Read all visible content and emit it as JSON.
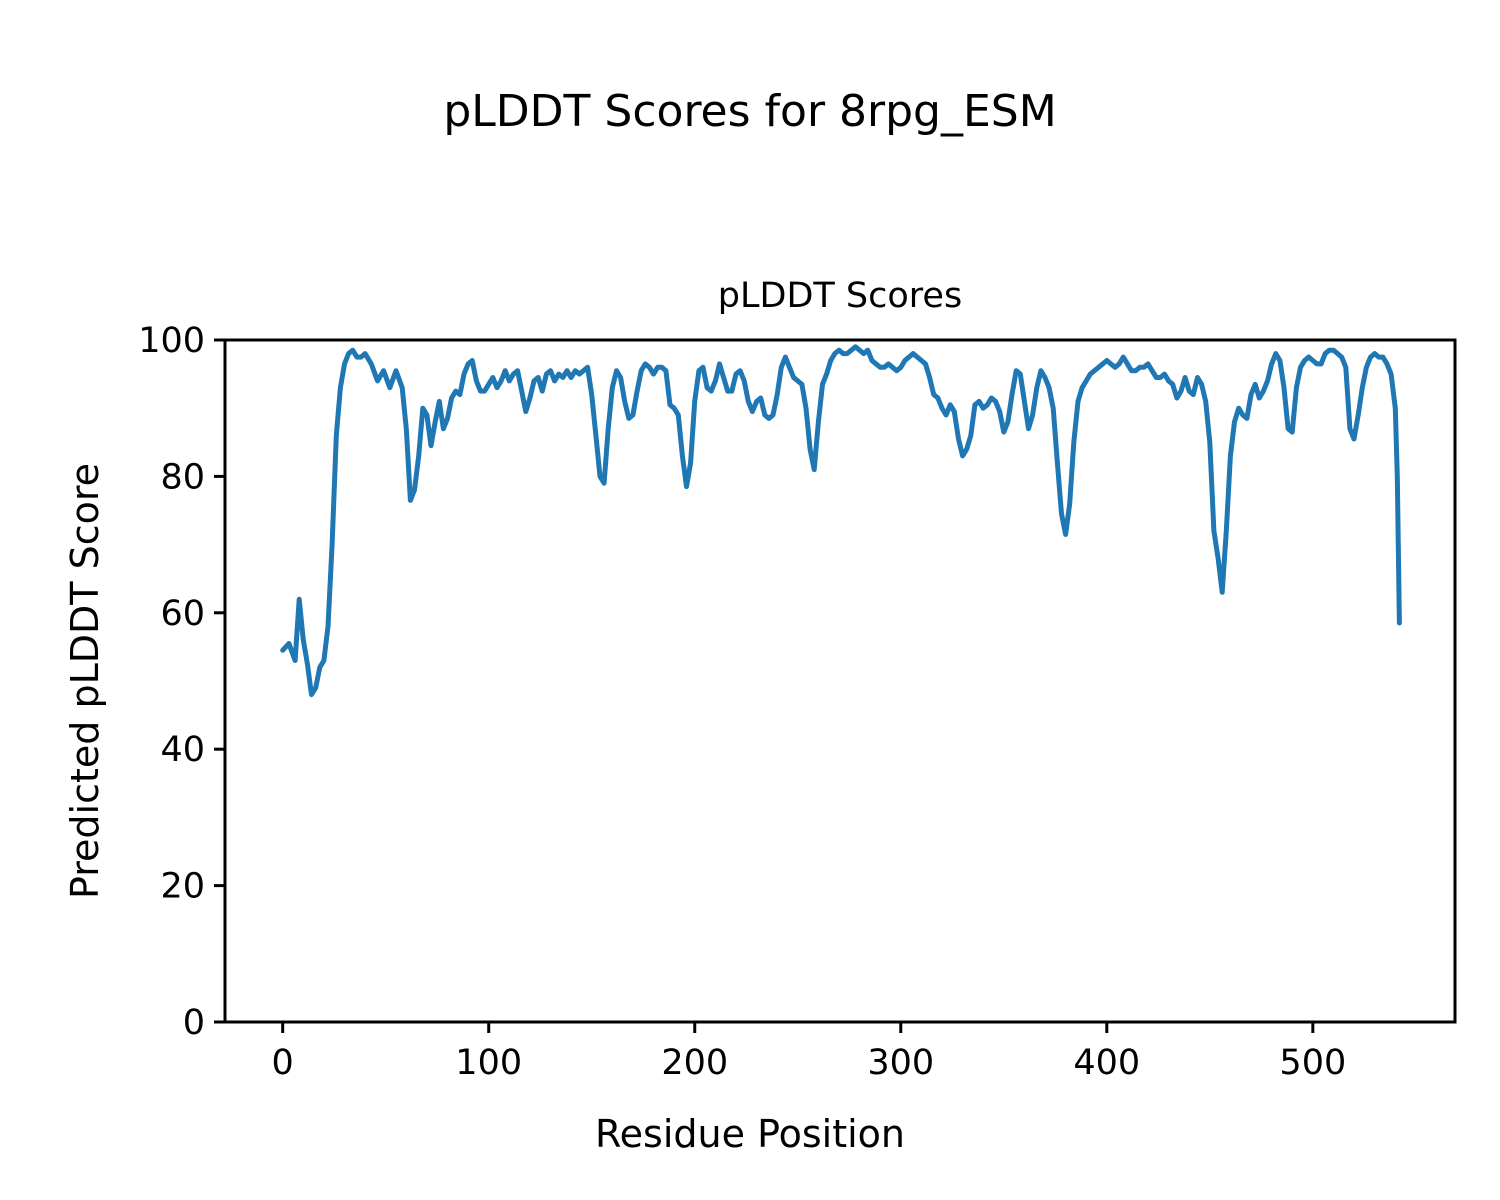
{
  "figure": {
    "background": "#ffffff"
  },
  "chart_data": {
    "type": "line",
    "suptitle": "pLDDT Scores for 8rpg_ESM",
    "title": "pLDDT Scores",
    "xlabel": "Residue Position",
    "ylabel": "Predicted pLDDT Score",
    "xlim": [
      -28,
      569
    ],
    "ylim": [
      0,
      100
    ],
    "xticks": [
      0,
      100,
      200,
      300,
      400,
      500
    ],
    "yticks": [
      0,
      20,
      40,
      60,
      80,
      100
    ],
    "grid": false,
    "legend": "none",
    "line_color": "#1f77b4",
    "series_name": "pLDDT",
    "points": [
      [
        0,
        54.5
      ],
      [
        3,
        55.5
      ],
      [
        6,
        53
      ],
      [
        8,
        62
      ],
      [
        10,
        56
      ],
      [
        12,
        52.5
      ],
      [
        14,
        48
      ],
      [
        16,
        49
      ],
      [
        18,
        52
      ],
      [
        20,
        53
      ],
      [
        22,
        58
      ],
      [
        24,
        70
      ],
      [
        26,
        86
      ],
      [
        28,
        93
      ],
      [
        30,
        96.5
      ],
      [
        32,
        98
      ],
      [
        34,
        98.5
      ],
      [
        36,
        97.5
      ],
      [
        38,
        97.5
      ],
      [
        40,
        98
      ],
      [
        43,
        96.5
      ],
      [
        46,
        94
      ],
      [
        49,
        95.5
      ],
      [
        52,
        93
      ],
      [
        55,
        95.5
      ],
      [
        58,
        93
      ],
      [
        60,
        87
      ],
      [
        62,
        76.5
      ],
      [
        64,
        78
      ],
      [
        66,
        83
      ],
      [
        68,
        90
      ],
      [
        70,
        89
      ],
      [
        72,
        84.5
      ],
      [
        74,
        88
      ],
      [
        76,
        91
      ],
      [
        78,
        87
      ],
      [
        80,
        88.5
      ],
      [
        82,
        91.5
      ],
      [
        84,
        92.5
      ],
      [
        86,
        92
      ],
      [
        88,
        95
      ],
      [
        90,
        96.5
      ],
      [
        92,
        97
      ],
      [
        94,
        94
      ],
      [
        96,
        92.5
      ],
      [
        98,
        92.5
      ],
      [
        100,
        93.5
      ],
      [
        102,
        94.5
      ],
      [
        104,
        93
      ],
      [
        106,
        94
      ],
      [
        108,
        95.5
      ],
      [
        110,
        94
      ],
      [
        112,
        95
      ],
      [
        114,
        95.5
      ],
      [
        116,
        92.5
      ],
      [
        118,
        89.5
      ],
      [
        120,
        91.5
      ],
      [
        122,
        94
      ],
      [
        124,
        94.5
      ],
      [
        126,
        92.5
      ],
      [
        128,
        95
      ],
      [
        130,
        95.5
      ],
      [
        132,
        94
      ],
      [
        134,
        95
      ],
      [
        136,
        94.5
      ],
      [
        138,
        95.5
      ],
      [
        140,
        94.5
      ],
      [
        142,
        95.5
      ],
      [
        144,
        95
      ],
      [
        146,
        95.5
      ],
      [
        148,
        96
      ],
      [
        150,
        92
      ],
      [
        152,
        86
      ],
      [
        154,
        80
      ],
      [
        156,
        79
      ],
      [
        158,
        87
      ],
      [
        160,
        93
      ],
      [
        162,
        95.5
      ],
      [
        164,
        94.5
      ],
      [
        166,
        91
      ],
      [
        168,
        88.5
      ],
      [
        170,
        89
      ],
      [
        172,
        92.5
      ],
      [
        174,
        95.5
      ],
      [
        176,
        96.5
      ],
      [
        178,
        96
      ],
      [
        180,
        95
      ],
      [
        182,
        96
      ],
      [
        184,
        96
      ],
      [
        186,
        95.5
      ],
      [
        188,
        90.5
      ],
      [
        190,
        90
      ],
      [
        192,
        89
      ],
      [
        194,
        83
      ],
      [
        196,
        78.5
      ],
      [
        198,
        82
      ],
      [
        200,
        91
      ],
      [
        202,
        95.5
      ],
      [
        204,
        96
      ],
      [
        206,
        93
      ],
      [
        208,
        92.5
      ],
      [
        210,
        94
      ],
      [
        212,
        96.5
      ],
      [
        214,
        94.5
      ],
      [
        216,
        92.5
      ],
      [
        218,
        92.5
      ],
      [
        220,
        95
      ],
      [
        222,
        95.5
      ],
      [
        224,
        94
      ],
      [
        226,
        91
      ],
      [
        228,
        89.5
      ],
      [
        230,
        91
      ],
      [
        232,
        91.5
      ],
      [
        234,
        89
      ],
      [
        236,
        88.5
      ],
      [
        238,
        89
      ],
      [
        240,
        92
      ],
      [
        242,
        96
      ],
      [
        244,
        97.5
      ],
      [
        246,
        96
      ],
      [
        248,
        94.5
      ],
      [
        250,
        94
      ],
      [
        252,
        93.5
      ],
      [
        254,
        90
      ],
      [
        256,
        84
      ],
      [
        258,
        81
      ],
      [
        260,
        88
      ],
      [
        262,
        93.5
      ],
      [
        264,
        95
      ],
      [
        266,
        97
      ],
      [
        268,
        98
      ],
      [
        270,
        98.5
      ],
      [
        272,
        98
      ],
      [
        274,
        98
      ],
      [
        276,
        98.5
      ],
      [
        278,
        99
      ],
      [
        280,
        98.5
      ],
      [
        282,
        98
      ],
      [
        284,
        98.5
      ],
      [
        286,
        97
      ],
      [
        288,
        96.5
      ],
      [
        290,
        96
      ],
      [
        292,
        96
      ],
      [
        294,
        96.5
      ],
      [
        296,
        96
      ],
      [
        298,
        95.5
      ],
      [
        300,
        96
      ],
      [
        302,
        97
      ],
      [
        304,
        97.5
      ],
      [
        306,
        98
      ],
      [
        308,
        97.5
      ],
      [
        310,
        97
      ],
      [
        312,
        96.5
      ],
      [
        314,
        94.5
      ],
      [
        316,
        92
      ],
      [
        318,
        91.5
      ],
      [
        320,
        90
      ],
      [
        322,
        89
      ],
      [
        324,
        90.5
      ],
      [
        326,
        89.5
      ],
      [
        328,
        85.5
      ],
      [
        330,
        83
      ],
      [
        332,
        84
      ],
      [
        334,
        86
      ],
      [
        336,
        90.5
      ],
      [
        338,
        91
      ],
      [
        340,
        90
      ],
      [
        342,
        90.5
      ],
      [
        344,
        91.5
      ],
      [
        346,
        91
      ],
      [
        348,
        89.5
      ],
      [
        350,
        86.5
      ],
      [
        352,
        88
      ],
      [
        354,
        92
      ],
      [
        356,
        95.5
      ],
      [
        358,
        95
      ],
      [
        360,
        91
      ],
      [
        362,
        87
      ],
      [
        364,
        89
      ],
      [
        366,
        93
      ],
      [
        368,
        95.5
      ],
      [
        370,
        94.5
      ],
      [
        372,
        93
      ],
      [
        374,
        90
      ],
      [
        376,
        82
      ],
      [
        378,
        74.5
      ],
      [
        380,
        71.5
      ],
      [
        382,
        76
      ],
      [
        384,
        85
      ],
      [
        386,
        91
      ],
      [
        388,
        93
      ],
      [
        390,
        94
      ],
      [
        392,
        95
      ],
      [
        394,
        95.5
      ],
      [
        396,
        96
      ],
      [
        398,
        96.5
      ],
      [
        400,
        97
      ],
      [
        402,
        96.5
      ],
      [
        404,
        96
      ],
      [
        406,
        96.5
      ],
      [
        408,
        97.5
      ],
      [
        410,
        96.5
      ],
      [
        412,
        95.5
      ],
      [
        414,
        95.5
      ],
      [
        416,
        96
      ],
      [
        418,
        96
      ],
      [
        420,
        96.5
      ],
      [
        422,
        95.5
      ],
      [
        424,
        94.5
      ],
      [
        426,
        94.5
      ],
      [
        428,
        95
      ],
      [
        430,
        94
      ],
      [
        432,
        93.5
      ],
      [
        434,
        91.5
      ],
      [
        436,
        92.5
      ],
      [
        438,
        94.5
      ],
      [
        440,
        92.5
      ],
      [
        442,
        92
      ],
      [
        444,
        94.5
      ],
      [
        446,
        93.5
      ],
      [
        448,
        91
      ],
      [
        450,
        85
      ],
      [
        452,
        72
      ],
      [
        454,
        68
      ],
      [
        456,
        63
      ],
      [
        458,
        72
      ],
      [
        460,
        83
      ],
      [
        462,
        88
      ],
      [
        464,
        90
      ],
      [
        466,
        89
      ],
      [
        468,
        88.5
      ],
      [
        470,
        92
      ],
      [
        472,
        93.5
      ],
      [
        474,
        91.5
      ],
      [
        476,
        92.5
      ],
      [
        478,
        94
      ],
      [
        480,
        96.5
      ],
      [
        482,
        98
      ],
      [
        484,
        97
      ],
      [
        486,
        93
      ],
      [
        488,
        87
      ],
      [
        490,
        86.5
      ],
      [
        492,
        93
      ],
      [
        494,
        96
      ],
      [
        496,
        97
      ],
      [
        498,
        97.5
      ],
      [
        500,
        97
      ],
      [
        502,
        96.5
      ],
      [
        504,
        96.5
      ],
      [
        506,
        98
      ],
      [
        508,
        98.5
      ],
      [
        510,
        98.5
      ],
      [
        512,
        98
      ],
      [
        514,
        97.5
      ],
      [
        516,
        96
      ],
      [
        518,
        87
      ],
      [
        520,
        85.5
      ],
      [
        522,
        89
      ],
      [
        524,
        93
      ],
      [
        526,
        96
      ],
      [
        528,
        97.5
      ],
      [
        530,
        98
      ],
      [
        532,
        97.5
      ],
      [
        534,
        97.5
      ],
      [
        536,
        96.5
      ],
      [
        538,
        95
      ],
      [
        540,
        90
      ],
      [
        541,
        80
      ],
      [
        542,
        58.5
      ]
    ]
  }
}
